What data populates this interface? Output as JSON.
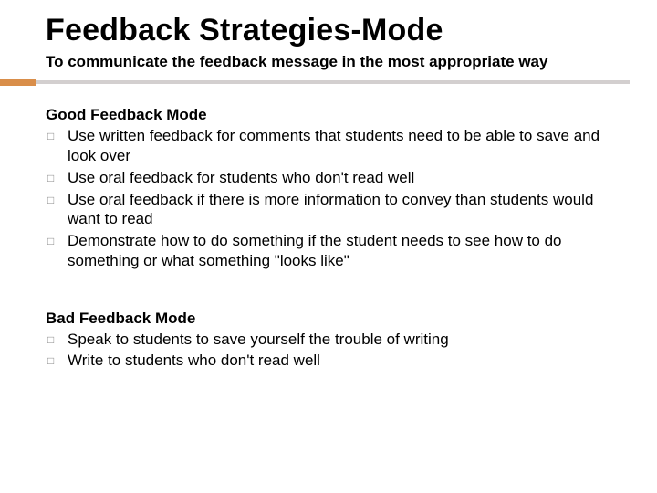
{
  "title": "Feedback Strategies-Mode",
  "subtitle": "To communicate the feedback message in the most appropriate way",
  "accent_color": "#d98e4a",
  "rule_color": "#d3cfcf",
  "bullet_glyph": "□",
  "sections": [
    {
      "heading": "Good Feedback Mode",
      "items": [
        " Use written feedback for comments that students need to be able to save and look over",
        "Use oral feedback for students who don't read well",
        "Use oral feedback if there is more information to convey than students would want to read",
        "Demonstrate how to do something if the student needs to see how to do something or what something \"looks like\""
      ]
    },
    {
      "heading": "Bad Feedback Mode",
      "items": [
        "Speak to students to save yourself the trouble of writing",
        "Write to students who don't read well"
      ]
    }
  ]
}
